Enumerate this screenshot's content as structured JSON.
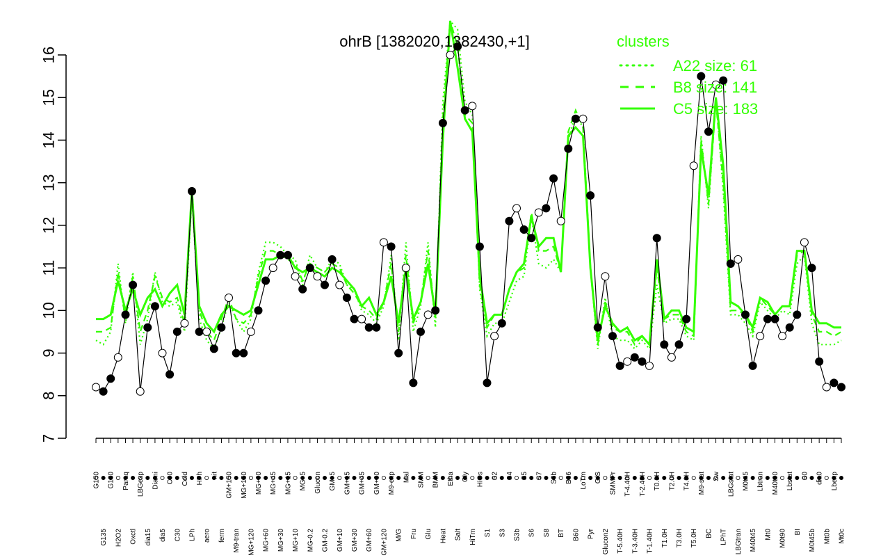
{
  "colors": {
    "accent": "#33ff00",
    "axis": "#000000",
    "point_filled": "#000000",
    "point_open": "#ffffff"
  },
  "chart_data": {
    "type": "line",
    "title": "ohrB [1382020,1382430,+1]",
    "xlabel": "",
    "ylabel": "",
    "ylim": [
      7,
      16.8
    ],
    "yticks": [
      7,
      8,
      9,
      10,
      11,
      12,
      13,
      14,
      15,
      16
    ],
    "grid": false,
    "legend": {
      "title": "clusters",
      "position": "top-right",
      "entries": [
        {
          "label": "A22 size: 61",
          "style": "dotted"
        },
        {
          "label": "B8 size: 141",
          "style": "dashed"
        },
        {
          "label": "C5 size: 183",
          "style": "solid"
        }
      ]
    },
    "xtick_labels": [
      "G150",
      "G135",
      "G180",
      "H2O2",
      "Paraq",
      "Oxctl",
      "LBGexp",
      "dia15",
      "Diami",
      "dia5",
      "C90",
      "C30",
      "Cold",
      "LPh",
      "HPh",
      "aero",
      "nit",
      "ferm",
      "GM+150",
      "M9-tran",
      "MG+150",
      "MG+120",
      "MG+90",
      "MG+60",
      "MG+45",
      "MG+30",
      "MG+15",
      "MG+10",
      "MG+5",
      "MG-0.2",
      "Glucon",
      "GM-0.2",
      "GM+5",
      "GM+10",
      "GM+15",
      "GM+30",
      "GM+45",
      "GM+60",
      "GM+90",
      "GM+120",
      "M9-exp",
      "M/G",
      "Mal",
      "Fru",
      "SMM",
      "Glu",
      "BMM",
      "Heat",
      "Etha",
      "Salt",
      "Gly",
      "HiTm",
      "HiOs",
      "S1",
      "S2",
      "S3",
      "S4",
      "S3b",
      "S5",
      "S6",
      "S7",
      "S8",
      "S6b",
      "BT",
      "B36",
      "B60",
      "LoTm",
      "Pyr",
      "G/S",
      "Glucon2",
      "SMMPr",
      "T-5.40H",
      "T-4.40H",
      "T-3.40H",
      "T-2.40H",
      "T-1.40H",
      "T0.0H",
      "T1.0H",
      "T2.0H",
      "T3.0H",
      "T4.0H",
      "T5.0H",
      "M9-stat",
      "BC",
      "Sw",
      "LPhT",
      "LBGstat",
      "LBGtran",
      "M0t45",
      "M40t45",
      "Lbtran",
      "Mt0",
      "M40t90",
      "M0t90",
      "Lbstat",
      "BI",
      "S0",
      "M0t45b",
      "dia0",
      "Mt0b",
      "Lbexp",
      "Mt0c"
    ],
    "series": [
      {
        "name": "C5 size: 183",
        "style": "solid",
        "values": [
          9.8,
          9.8,
          9.9,
          10.7,
          10.0,
          10.5,
          9.9,
          10.3,
          10.5,
          10.1,
          10.4,
          10.6,
          9.9,
          12.8,
          10.1,
          9.7,
          9.5,
          9.9,
          10.1,
          10.0,
          9.9,
          10.0,
          10.6,
          11.2,
          11.2,
          11.3,
          11.3,
          11.0,
          10.9,
          11.0,
          10.9,
          10.8,
          11.0,
          10.9,
          10.7,
          10.5,
          10.1,
          10.3,
          9.9,
          10.2,
          10.8,
          9.7,
          11.0,
          9.8,
          10.2,
          11.1,
          9.9,
          14.0,
          16.8,
          15.7,
          14.5,
          14.2,
          10.8,
          9.7,
          9.9,
          9.9,
          10.5,
          10.9,
          11.1,
          12.2,
          11.5,
          11.7,
          11.7,
          10.9,
          14.1,
          14.3,
          14.1,
          11.0,
          9.3,
          10.1,
          9.7,
          9.5,
          9.6,
          9.3,
          9.4,
          9.2,
          11.2,
          9.8,
          10.0,
          10.0,
          9.6,
          9.5,
          13.8,
          12.7,
          15.0,
          13.4,
          10.2,
          10.1,
          9.9,
          9.6,
          10.3,
          10.2,
          9.9,
          10.1,
          10.1,
          11.4,
          11.4,
          10.0,
          9.7,
          9.7,
          9.6,
          9.6
        ]
      },
      {
        "name": "B8 size: 141",
        "style": "dashed",
        "values": [
          9.5,
          9.5,
          9.6,
          10.9,
          9.8,
          10.8,
          9.5,
          10.0,
          10.8,
          10.3,
          10.2,
          10.3,
          9.7,
          12.9,
          10.0,
          9.5,
          9.3,
          9.8,
          10.3,
          9.8,
          9.7,
          9.9,
          10.8,
          11.4,
          11.4,
          11.3,
          11.2,
          11.1,
          10.7,
          11.1,
          11.0,
          10.9,
          11.1,
          11.0,
          10.6,
          10.4,
          10.1,
          10.0,
          9.8,
          10.2,
          11.1,
          9.5,
          11.3,
          9.7,
          10.2,
          11.4,
          9.8,
          14.5,
          17.0,
          16.2,
          14.6,
          14.4,
          10.6,
          9.6,
          9.9,
          9.9,
          10.5,
          10.9,
          11.0,
          12.3,
          11.4,
          11.4,
          11.5,
          10.9,
          14.2,
          14.7,
          14.3,
          11.0,
          9.2,
          10.2,
          9.6,
          9.5,
          9.5,
          9.2,
          9.4,
          9.2,
          11.0,
          9.8,
          9.9,
          9.9,
          9.5,
          9.4,
          14.0,
          12.5,
          14.9,
          13.0,
          10.0,
          10.0,
          9.9,
          9.5,
          10.3,
          10.1,
          9.9,
          10.1,
          10.1,
          11.3,
          11.4,
          9.9,
          9.5,
          9.5,
          9.4,
          9.5
        ]
      },
      {
        "name": "A22 size: 61",
        "style": "dotted",
        "values": [
          9.3,
          9.2,
          9.5,
          11.1,
          9.7,
          10.9,
          9.2,
          9.8,
          10.9,
          10.2,
          10.1,
          10.2,
          9.5,
          12.7,
          9.8,
          9.3,
          9.1,
          9.6,
          10.2,
          9.8,
          9.5,
          9.8,
          10.9,
          11.6,
          11.6,
          11.5,
          11.3,
          11.2,
          10.6,
          11.3,
          11.0,
          10.9,
          11.2,
          11.1,
          10.6,
          10.5,
          10.0,
          9.9,
          9.7,
          10.1,
          11.3,
          9.3,
          11.6,
          9.5,
          10.1,
          11.6,
          9.6,
          14.9,
          17.2,
          16.6,
          14.9,
          14.6,
          10.5,
          9.4,
          9.7,
          9.7,
          10.2,
          10.7,
          10.8,
          12.2,
          11.1,
          11.0,
          11.2,
          10.9,
          14.0,
          14.6,
          14.3,
          11.0,
          9.1,
          10.3,
          9.4,
          9.3,
          9.3,
          9.1,
          9.3,
          9.1,
          10.6,
          9.7,
          9.8,
          9.8,
          9.4,
          9.3,
          14.1,
          12.4,
          15.0,
          12.8,
          9.9,
          9.9,
          9.7,
          9.4,
          10.2,
          10.0,
          9.8,
          10.0,
          9.9,
          11.1,
          11.3,
          9.7,
          9.2,
          9.2,
          9.2,
          9.3
        ]
      },
      {
        "name": "",
        "style": "points",
        "values": [
          8.2,
          8.1,
          8.4,
          8.9,
          9.9,
          10.6,
          8.1,
          9.6,
          10.1,
          9.0,
          8.5,
          9.5,
          9.7,
          12.8,
          9.5,
          9.5,
          9.1,
          9.6,
          10.3,
          9.0,
          9.0,
          9.5,
          10.0,
          10.7,
          11.0,
          11.3,
          11.3,
          10.8,
          10.5,
          11.0,
          10.8,
          10.6,
          11.2,
          10.6,
          10.3,
          9.8,
          9.8,
          9.6,
          9.6,
          11.6,
          11.5,
          9.0,
          11.0,
          8.3,
          9.5,
          9.9,
          10.0,
          14.4,
          16.0,
          16.2,
          14.7,
          14.8,
          11.5,
          8.3,
          9.4,
          9.7,
          12.1,
          12.4,
          11.9,
          11.7,
          12.3,
          12.4,
          13.1,
          12.1,
          13.8,
          14.5,
          14.5,
          12.7,
          9.6,
          10.8,
          9.4,
          8.7,
          8.8,
          8.9,
          8.8,
          8.7,
          11.7,
          9.2,
          8.9,
          9.2,
          9.8,
          13.4,
          15.5,
          14.2,
          15.3,
          15.4,
          11.1,
          11.2,
          9.9,
          8.7,
          9.4,
          9.8,
          9.8,
          9.4,
          9.6,
          9.9,
          11.6,
          11.0,
          8.8,
          8.2,
          8.3,
          8.2
        ]
      }
    ]
  }
}
